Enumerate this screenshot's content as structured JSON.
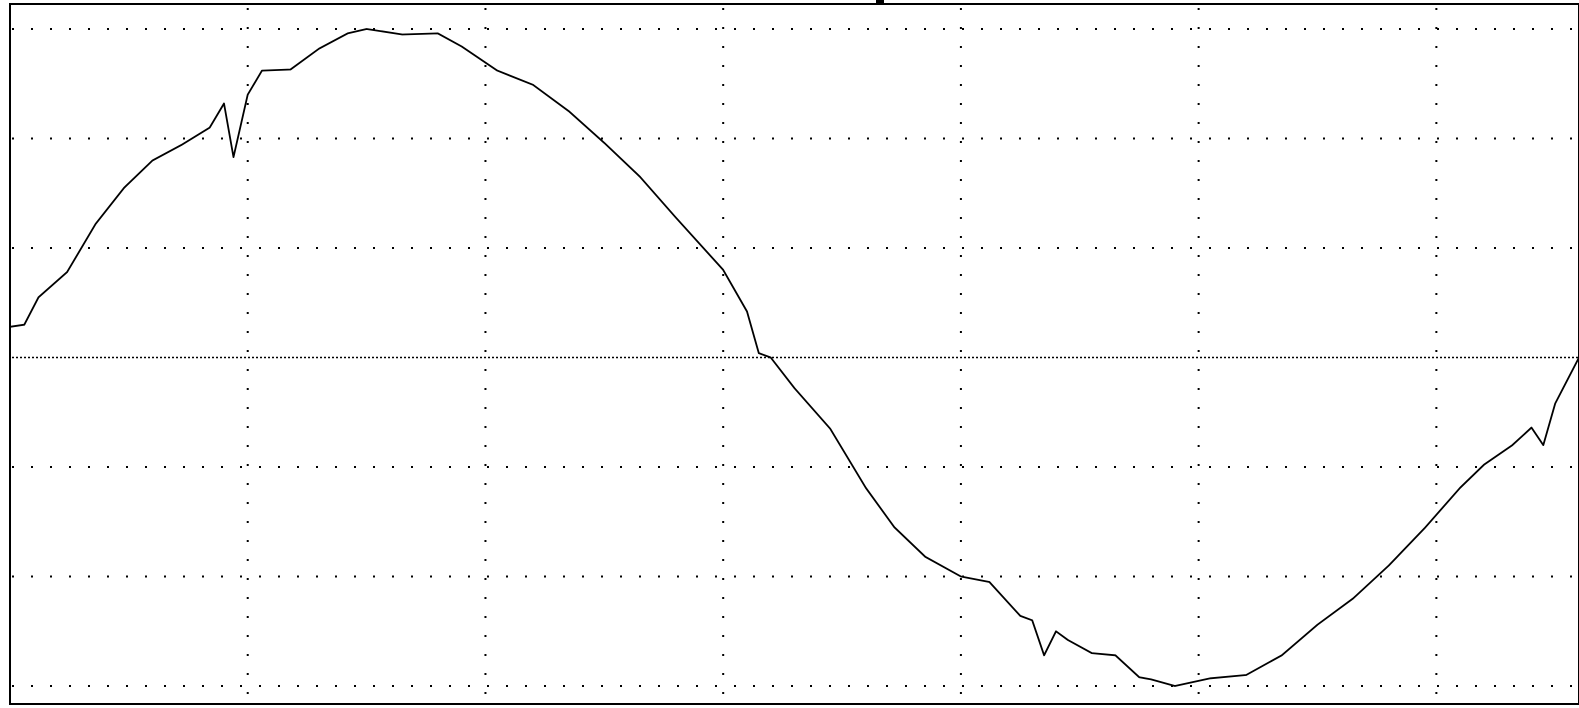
{
  "chart_data": {
    "type": "line",
    "title": "",
    "xlabel": "",
    "ylabel": "",
    "xlim": [
      0,
      6.6
    ],
    "ylim": [
      -3.0,
      3.0
    ],
    "grid": true,
    "x_divisions": 6.6,
    "y_divisions": 6,
    "line_color": "#000000",
    "grid_color": "#000000",
    "background": "#ffffff",
    "series": [
      {
        "values": [
          [
            0.0,
            0.28
          ],
          [
            0.06,
            0.3
          ],
          [
            0.12,
            0.55
          ],
          [
            0.24,
            0.78
          ],
          [
            0.36,
            1.22
          ],
          [
            0.48,
            1.55
          ],
          [
            0.6,
            1.8
          ],
          [
            0.72,
            1.94
          ],
          [
            0.84,
            2.1
          ],
          [
            0.9,
            2.32
          ],
          [
            0.94,
            1.83
          ],
          [
            1.0,
            2.4
          ],
          [
            1.06,
            2.62
          ],
          [
            1.18,
            2.63
          ],
          [
            1.3,
            2.82
          ],
          [
            1.42,
            2.96
          ],
          [
            1.5,
            3.0
          ],
          [
            1.65,
            2.95
          ],
          [
            1.8,
            2.96
          ],
          [
            1.9,
            2.84
          ],
          [
            2.05,
            2.62
          ],
          [
            2.2,
            2.49
          ],
          [
            2.35,
            2.25
          ],
          [
            2.5,
            1.96
          ],
          [
            2.65,
            1.65
          ],
          [
            2.8,
            1.28
          ],
          [
            3.0,
            0.8
          ],
          [
            3.1,
            0.42
          ],
          [
            3.15,
            0.04
          ],
          [
            3.2,
            0.0
          ],
          [
            3.3,
            -0.28
          ],
          [
            3.45,
            -0.65
          ],
          [
            3.6,
            -1.19
          ],
          [
            3.72,
            -1.55
          ],
          [
            3.85,
            -1.82
          ],
          [
            4.0,
            -2.0
          ],
          [
            4.12,
            -2.05
          ],
          [
            4.25,
            -2.36
          ],
          [
            4.3,
            -2.4
          ],
          [
            4.35,
            -2.72
          ],
          [
            4.4,
            -2.5
          ],
          [
            4.45,
            -2.58
          ],
          [
            4.55,
            -2.7
          ],
          [
            4.65,
            -2.72
          ],
          [
            4.75,
            -2.92
          ],
          [
            4.8,
            -2.94
          ],
          [
            4.9,
            -3.0
          ],
          [
            5.05,
            -2.93
          ],
          [
            5.2,
            -2.9
          ],
          [
            5.35,
            -2.72
          ],
          [
            5.5,
            -2.44
          ],
          [
            5.65,
            -2.2
          ],
          [
            5.8,
            -1.9
          ],
          [
            5.95,
            -1.56
          ],
          [
            6.1,
            -1.19
          ],
          [
            6.2,
            -0.98
          ],
          [
            6.32,
            -0.8
          ],
          [
            6.4,
            -0.64
          ],
          [
            6.45,
            -0.8
          ],
          [
            6.5,
            -0.42
          ],
          [
            6.6,
            0.0
          ]
        ]
      }
    ]
  }
}
